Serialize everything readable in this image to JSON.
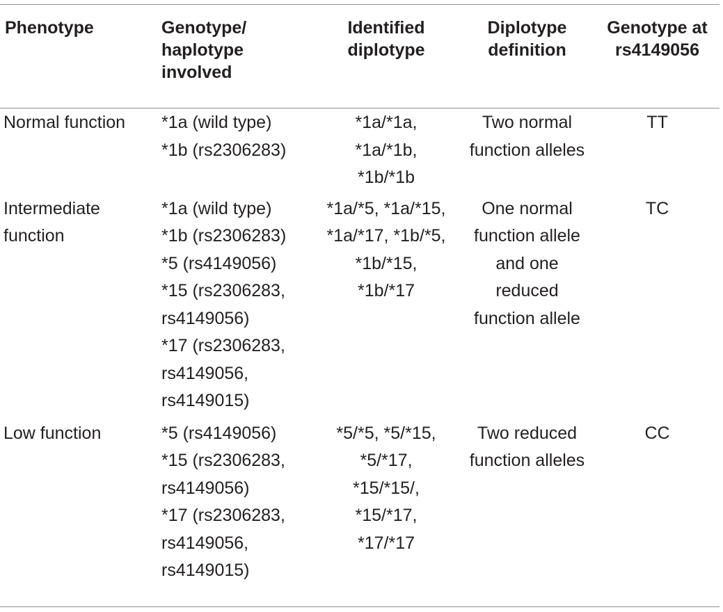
{
  "table": {
    "headers": [
      [
        "Phenotype"
      ],
      [
        "Genotype/",
        "haplotype",
        "involved"
      ],
      [
        "Identified",
        "diplotype"
      ],
      [
        "Diplotype",
        "definition"
      ],
      [
        "Genotype at",
        "rs4149056"
      ]
    ],
    "rows": [
      {
        "phenotype": [
          "Normal function"
        ],
        "genotype": [
          "*1a (wild type)",
          "*1b (rs2306283)"
        ],
        "diplotype": [
          "*1a/*1a,",
          "*1a/*1b,",
          "*1b/*1b"
        ],
        "definition": [
          "Two normal",
          "function alleles"
        ],
        "rs4149056": [
          "TT"
        ]
      },
      {
        "phenotype": [
          "Intermediate",
          "function"
        ],
        "genotype": [
          "*1a (wild type)",
          "*1b (rs2306283)",
          "*5 (rs4149056)",
          "*15 (rs2306283,",
          "rs4149056)",
          "*17 (rs2306283,",
          "rs4149056,",
          "rs4149015)"
        ],
        "diplotype": [
          "*1a/*5, *1a/*15,",
          "*1a/*17, *1b/*5,",
          "*1b/*15,",
          "*1b/*17"
        ],
        "definition": [
          "One normal",
          "function allele",
          "and one",
          "reduced",
          "function allele"
        ],
        "rs4149056": [
          "TC"
        ]
      },
      {
        "phenotype": [
          "Low function"
        ],
        "genotype": [
          "*5 (rs4149056)",
          "*15 (rs2306283,",
          "rs4149056)",
          "*17 (rs2306283,",
          "rs4149056,",
          "rs4149015)"
        ],
        "diplotype": [
          "*5/*5, *5/*15,",
          "*5/*17,",
          "*15/*15/,",
          "*15/*17,",
          "*17/*17"
        ],
        "definition": [
          "Two reduced",
          "function alleles"
        ],
        "rs4149056": [
          "CC"
        ]
      }
    ]
  }
}
